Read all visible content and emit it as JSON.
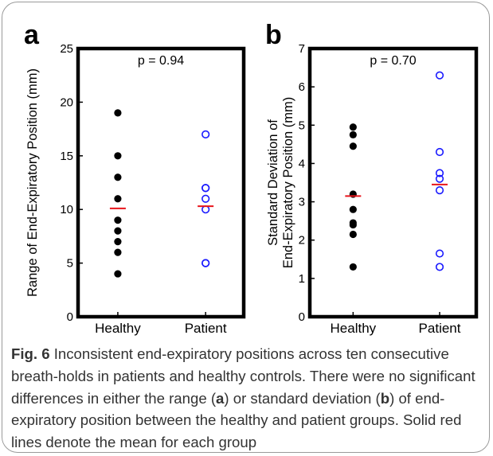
{
  "chart_data": [
    {
      "type": "scatter",
      "panel_label": "a",
      "annotation": "p = 0.94",
      "ylabel": "Range of End-Expiratory Position (mm)",
      "ylim": [
        0,
        25
      ],
      "yticks": [
        0,
        5,
        10,
        15,
        20,
        25
      ],
      "categories": [
        "Healthy",
        "Patient"
      ],
      "series": [
        {
          "category": "Healthy",
          "marker": "filled",
          "color": "#000000",
          "values": [
            19,
            15,
            13,
            11,
            9,
            8,
            7,
            6,
            4
          ],
          "mean": 10.1
        },
        {
          "category": "Patient",
          "marker": "open",
          "color": "#1a1aff",
          "values": [
            17,
            12,
            12,
            11,
            10,
            5,
            5
          ],
          "mean": 10.3
        }
      ],
      "mean_line_color": "#e8141b"
    },
    {
      "type": "scatter",
      "panel_label": "b",
      "annotation": "p = 0.70",
      "ylabel": [
        "Standard Deviation of",
        "End-Expiratory Position (mm)"
      ],
      "ylim": [
        0,
        7
      ],
      "yticks": [
        0,
        1,
        2,
        3,
        4,
        5,
        6,
        7
      ],
      "categories": [
        "Healthy",
        "Patient"
      ],
      "series": [
        {
          "category": "Healthy",
          "marker": "filled",
          "color": "#000000",
          "values": [
            4.95,
            4.75,
            4.45,
            3.2,
            2.8,
            2.45,
            2.4,
            2.15,
            1.3
          ],
          "mean": 3.15
        },
        {
          "category": "Patient",
          "marker": "open",
          "color": "#1a1aff",
          "values": [
            6.3,
            4.3,
            3.75,
            3.6,
            3.3,
            1.65,
            1.3
          ],
          "mean": 3.45
        }
      ],
      "mean_line_color": "#e8141b"
    }
  ],
  "caption": {
    "fig_label": "Fig. 6",
    "part1": " Inconsistent end-expiratory positions across ten consecutive breath-holds in patients and healthy controls. There were no significant differences in either the range (",
    "a": "a",
    "part2": ") or standard deviation (",
    "b": "b",
    "part3": ") of end-expiratory position between the healthy and patient groups. Solid red lines denote the mean for each group"
  }
}
